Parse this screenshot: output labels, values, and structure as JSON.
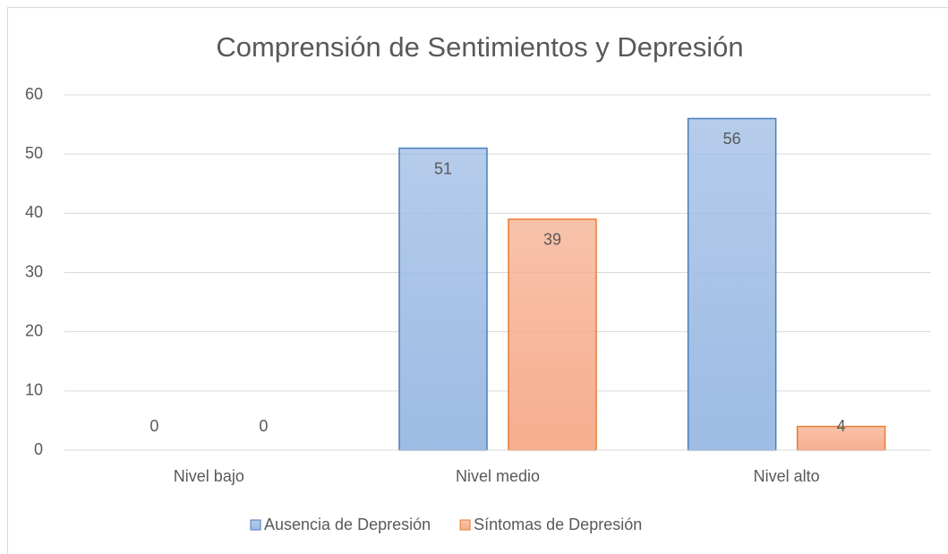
{
  "chart_data": {
    "type": "bar",
    "title": "Comprensión de Sentimientos y Depresión",
    "categories": [
      "Nivel bajo",
      "Nivel medio",
      "Nivel alto"
    ],
    "series": [
      {
        "name": "Ausencia de Depresión",
        "color": "#9dbbe4",
        "edgecolor": "#4a7ebb",
        "values": [
          0,
          51,
          56
        ]
      },
      {
        "name": "Síntomas de Depresión",
        "color": "#f6ae8e",
        "edgecolor": "#e97b33",
        "values": [
          0,
          39,
          4
        ]
      }
    ],
    "ylim": [
      0,
      60
    ],
    "yticks": [
      0,
      10,
      20,
      30,
      40,
      50,
      60
    ],
    "grid": true,
    "legend": "bottom"
  }
}
